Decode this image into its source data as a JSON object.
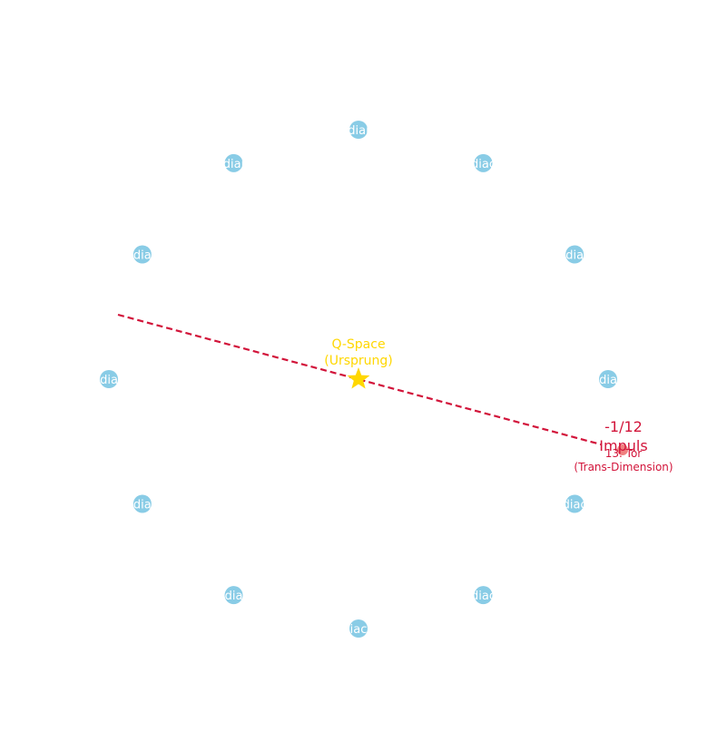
{
  "diagram": {
    "center": {
      "label_line1": "Q-Space",
      "label_line2": "(Ursprung)",
      "icon": "star-icon",
      "color": "#FFD700"
    },
    "nodes": [
      {
        "label": "diai"
      },
      {
        "label": "diac"
      },
      {
        "label": "dia"
      },
      {
        "label": "dia"
      },
      {
        "label": "diac"
      },
      {
        "label": "diac"
      },
      {
        "label": "iac"
      },
      {
        "label": "dia"
      },
      {
        "label": "dia"
      },
      {
        "label": "dia"
      },
      {
        "label": "dia"
      },
      {
        "label": "diai"
      }
    ],
    "node_color": "#89CCE6",
    "node_label_color": "#ffffff",
    "impulse": {
      "label_line1": "-1/12",
      "label_line2": "Impuls",
      "sub_line1": "13. Tor",
      "sub_line2": "(Trans-Dimension)",
      "color": "#D2143A",
      "marker_color": "#F08080"
    }
  }
}
